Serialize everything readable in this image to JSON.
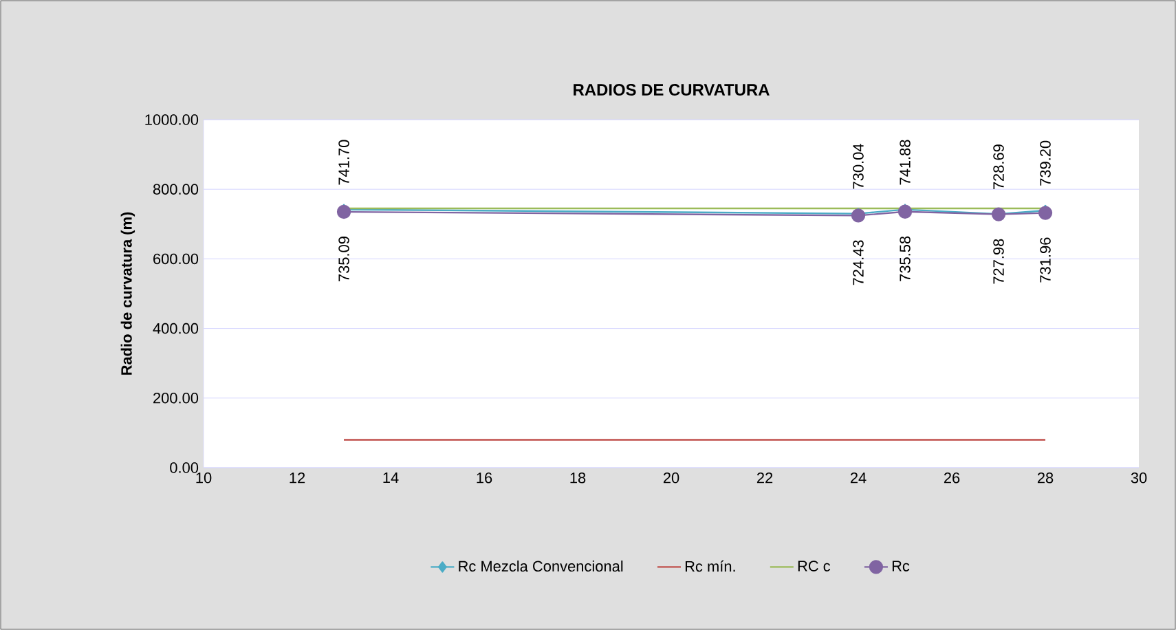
{
  "chart_data": {
    "type": "line",
    "title": "RADIOS DE CURVATURA",
    "ylabel": "Radio de curvatura (m)",
    "x": [
      13,
      24,
      25,
      27,
      28
    ],
    "series": [
      {
        "name": "Rc Mezcla Convencional",
        "color": "#4bacc6",
        "marker": "diamond",
        "values": [
          741.7,
          730.04,
          741.88,
          728.69,
          739.2
        ],
        "value_labels": [
          "741.70",
          "730.04",
          "741.88",
          "728.69",
          "739.20"
        ]
      },
      {
        "name": "Rc mín.",
        "color": "#c0504d",
        "marker": "none",
        "values": [
          80,
          80,
          80,
          80,
          80
        ]
      },
      {
        "name": "RC c",
        "color": "#9bbb59",
        "marker": "none",
        "values": [
          745,
          745,
          745,
          745,
          745
        ]
      },
      {
        "name": "Rc",
        "color": "#8064a2",
        "marker": "circle",
        "values": [
          735.09,
          724.43,
          735.58,
          727.98,
          731.96
        ],
        "value_labels": [
          "735.09",
          "724.43",
          "735.58",
          "727.98",
          "731.96"
        ]
      }
    ],
    "xlim": [
      10,
      30
    ],
    "xticks": [
      10,
      12,
      14,
      16,
      18,
      20,
      22,
      24,
      26,
      28,
      30
    ],
    "ylim": [
      0,
      1000
    ],
    "yticks": [
      {
        "value": 0,
        "label": "0.00"
      },
      {
        "value": 200,
        "label": "200.00"
      },
      {
        "value": 400,
        "label": "400.00"
      },
      {
        "value": 600,
        "label": "600.00"
      },
      {
        "value": 800,
        "label": "800.00"
      },
      {
        "value": 1000,
        "label": "1000.00"
      }
    ],
    "grid": "y",
    "legend": "bottom",
    "line_style": "solid"
  }
}
